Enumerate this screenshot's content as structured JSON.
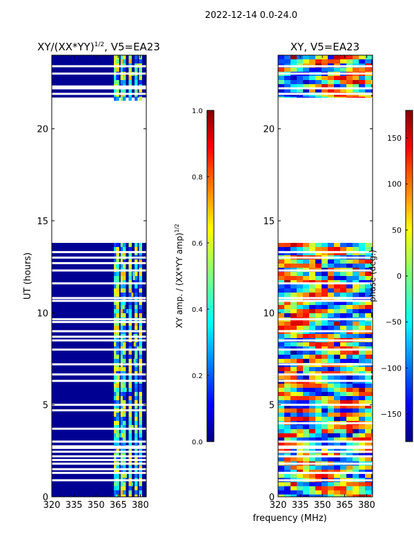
{
  "suptitle": "2022-12-14 0.0-24.0",
  "colors": {
    "jet": [
      "#00007f",
      "#0000ff",
      "#007fff",
      "#00ffff",
      "#7fff7f",
      "#ffff00",
      "#ff7f00",
      "#ff0000",
      "#7f0000"
    ],
    "white": "#ffffff",
    "frame": "#000000"
  },
  "chart_data": [
    {
      "type": "heatmap",
      "title_main": "XY/(XX*YY)",
      "title_exp": "1/2",
      "title_suffix": ", V5=EA23",
      "xlabel": "",
      "ylabel": "UT (hours)",
      "xlim": [
        320,
        384
      ],
      "ylim": [
        0,
        24
      ],
      "xticks": [
        320,
        335,
        350,
        365,
        380
      ],
      "yticks": [
        0,
        5,
        10,
        15,
        20
      ],
      "data_bands_hours": [
        [
          0,
          2.6
        ],
        [
          2.8,
          13.8
        ],
        [
          21.7,
          24
        ]
      ],
      "gap_rows_hours": [
        0.9,
        1.3,
        1.5,
        1.8,
        2.0,
        2.2,
        2.45,
        3.0,
        3.7,
        4.7,
        5.0,
        6.3,
        6.65,
        7.2,
        8.0,
        8.5,
        8.7,
        9.0,
        9.5,
        9.65,
        10.65,
        10.8,
        11.6,
        12.3,
        12.7,
        13.0,
        13.3,
        21.9,
        22.2,
        22.3,
        23.0,
        23.4
      ],
      "signal_columns_mhz": [
        363,
        364.5,
        367.5,
        369,
        373,
        377,
        380
      ],
      "colorbar": {
        "label_main": "XY amp. / (XX*YY amp)",
        "label_exp": "1/2",
        "ticks": [
          "0.0",
          "0.2",
          "0.4",
          "0.6",
          "0.8",
          "1.0"
        ],
        "range": [
          0,
          1
        ]
      }
    },
    {
      "type": "heatmap",
      "title": "XY, V5=EA23",
      "xlabel": "frequency (MHz)",
      "ylabel": "",
      "xlim": [
        320,
        384
      ],
      "ylim": [
        0,
        24
      ],
      "xticks": [
        320,
        335,
        350,
        365,
        380
      ],
      "yticks": [
        0,
        5,
        10,
        15,
        20
      ],
      "data_bands_hours": [
        [
          0,
          2.6
        ],
        [
          2.8,
          13.8
        ],
        [
          21.7,
          24
        ]
      ],
      "gap_rows_hours": [
        0.9,
        1.3,
        1.8,
        2.2,
        2.45,
        3.0,
        4.0,
        5.0,
        6.3,
        6.65,
        7.2,
        8.0,
        8.5,
        9.0,
        9.65,
        10.65,
        10.8,
        11.6,
        12.3,
        13.0,
        13.3,
        21.9,
        22.2,
        23.0,
        23.4
      ],
      "colorbar": {
        "label": "phase (deg.)",
        "ticks": [
          "150",
          "100",
          "50",
          "0",
          "−50",
          "−100",
          "−150"
        ],
        "tick_values": [
          150,
          100,
          50,
          0,
          -50,
          -100,
          -150
        ],
        "range": [
          -180,
          180
        ]
      }
    }
  ]
}
